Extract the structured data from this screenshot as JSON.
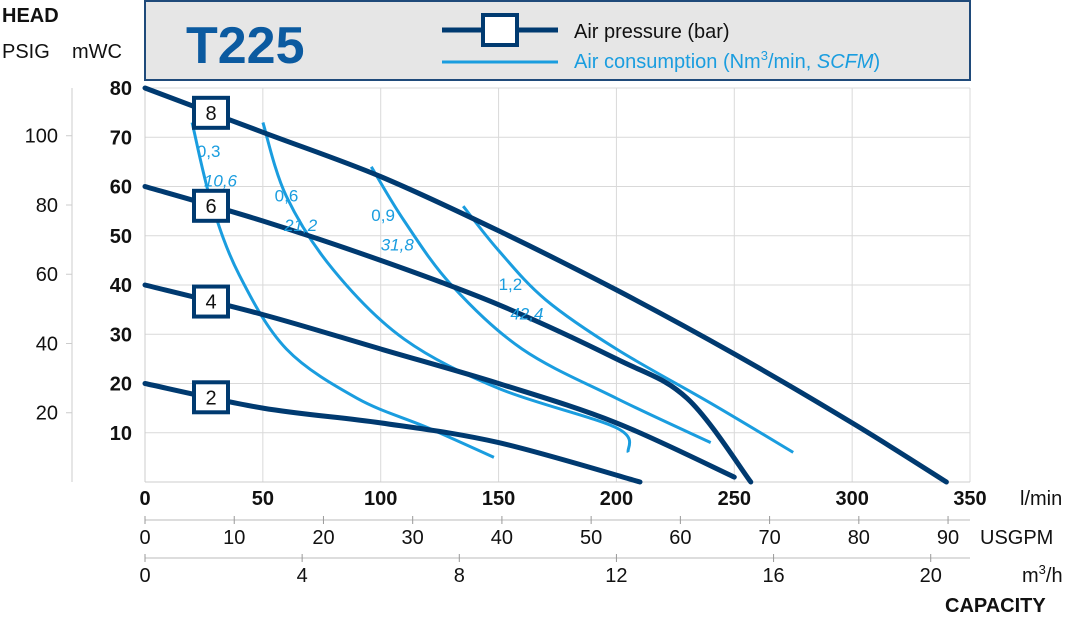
{
  "model_title": "T225",
  "colors": {
    "pressure": "#003a70",
    "consumption": "#1a9ddf",
    "header_bg": "#e6e6e6",
    "header_border": "#1f4a7a",
    "grid": "#d9d9d9",
    "title": "#0b5aa0"
  },
  "legend": {
    "pressure_label": "Air pressure (bar)",
    "consumption_label_prefix": "Air consumption (Nm",
    "consumption_label_sup": "3",
    "consumption_label_mid": "/min, ",
    "consumption_label_italic": "SCFM",
    "consumption_label_suffix": ")"
  },
  "axes": {
    "head_label": "HEAD",
    "psig_label": "PSIG",
    "mwc_label": "mWC",
    "capacity_label": "CAPACITY",
    "lmin_unit": "l/min",
    "usgpm_unit": "USGPM",
    "m3h_unit_prefix": "m",
    "m3h_unit_sup": "3",
    "m3h_unit_suffix": "/h",
    "lmin_ticks": [
      "0",
      "50",
      "100",
      "150",
      "200",
      "250",
      "300",
      "350"
    ],
    "usgpm_ticks": [
      "0",
      "10",
      "20",
      "30",
      "40",
      "50",
      "60",
      "70",
      "80",
      "90"
    ],
    "m3h_ticks": [
      "0",
      "4",
      "8",
      "12",
      "16",
      "20"
    ],
    "mwc_ticks": [
      "10",
      "20",
      "30",
      "40",
      "50",
      "60",
      "70",
      "80"
    ],
    "psig_ticks": [
      "20",
      "40",
      "60",
      "80",
      "100"
    ]
  },
  "chart_data": {
    "type": "line",
    "title": "T225",
    "xlabel": "CAPACITY",
    "ylabel": "HEAD",
    "xlim": [
      0,
      350
    ],
    "ylim": [
      0,
      80
    ],
    "x_units": "l/min",
    "y_units": "mWC",
    "grid": true,
    "legend_position": "top",
    "pressure_series": [
      {
        "name": "8",
        "points": [
          [
            0,
            80
          ],
          [
            50,
            71
          ],
          [
            100,
            62
          ],
          [
            150,
            51
          ],
          [
            200,
            39
          ],
          [
            250,
            26
          ],
          [
            300,
            12
          ],
          [
            340,
            0
          ]
        ]
      },
      {
        "name": "6",
        "points": [
          [
            0,
            60
          ],
          [
            50,
            53
          ],
          [
            100,
            45
          ],
          [
            150,
            36
          ],
          [
            200,
            25
          ],
          [
            230,
            17
          ],
          [
            257,
            0
          ]
        ]
      },
      {
        "name": "4",
        "points": [
          [
            0,
            40
          ],
          [
            50,
            34
          ],
          [
            100,
            27
          ],
          [
            150,
            20
          ],
          [
            200,
            12
          ],
          [
            250,
            1
          ]
        ]
      },
      {
        "name": "2",
        "points": [
          [
            0,
            20
          ],
          [
            50,
            15
          ],
          [
            100,
            12
          ],
          [
            150,
            8
          ],
          [
            210,
            0
          ]
        ]
      }
    ],
    "consumption_series": [
      {
        "label_metric": "0,3",
        "label_imperial": "10,6",
        "points": [
          [
            20,
            73
          ],
          [
            28,
            57
          ],
          [
            40,
            42
          ],
          [
            60,
            27
          ],
          [
            90,
            17
          ],
          [
            120,
            11
          ],
          [
            148,
            5
          ]
        ]
      },
      {
        "label_metric": "0,6",
        "label_imperial": "21,2",
        "points": [
          [
            50,
            73
          ],
          [
            60,
            58
          ],
          [
            80,
            43
          ],
          [
            110,
            29
          ],
          [
            150,
            19
          ],
          [
            200,
            11
          ],
          [
            205,
            6
          ]
        ]
      },
      {
        "label_metric": "0,9",
        "label_imperial": "31,8",
        "points": [
          [
            96,
            64
          ],
          [
            110,
            53
          ],
          [
            130,
            40
          ],
          [
            160,
            27
          ],
          [
            200,
            17
          ],
          [
            240,
            8
          ]
        ]
      },
      {
        "label_metric": "1,2",
        "label_imperial": "42,4",
        "points": [
          [
            135,
            56
          ],
          [
            150,
            47
          ],
          [
            170,
            37
          ],
          [
            200,
            27
          ],
          [
            240,
            16
          ],
          [
            275,
            6
          ]
        ]
      }
    ]
  }
}
